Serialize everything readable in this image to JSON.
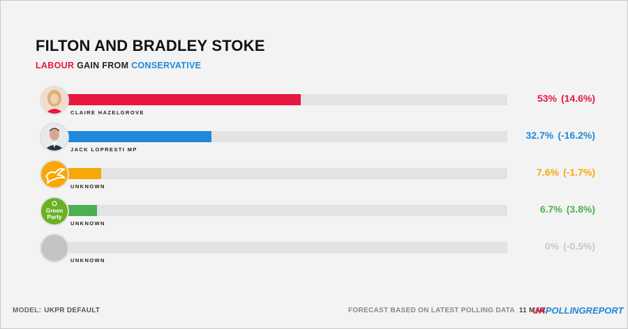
{
  "title": "FILTON AND BRADLEY STOKE",
  "subtitle": {
    "gaining_party": "LABOUR",
    "middle": "GAIN FROM",
    "losing_party": "CONSERVATIVE"
  },
  "colors": {
    "labour": "#e8173f",
    "conservative": "#1f88d8",
    "libdem": "#f7a70a",
    "green": "#4caf50",
    "other": "#c4c4c4",
    "track": "#e3e3e3"
  },
  "chart_data": {
    "type": "bar",
    "orientation": "horizontal",
    "xlim": [
      0,
      100
    ],
    "grid": false,
    "categories": [
      "CLAIRE HAZELGROVE",
      "JACK LOPRESTI MP",
      "UNKNOWN",
      "UNKNOWN",
      "UNKNOWN"
    ],
    "values": [
      53,
      32.7,
      7.6,
      6.7,
      0
    ],
    "value_labels": [
      "53%",
      "32.7%",
      "7.6%",
      "6.7%",
      "0%"
    ],
    "change_labels": [
      "(14.6%)",
      "(-16.2%)",
      "(-1.7%)",
      "(3.8%)",
      "(-0.5%)"
    ],
    "changes": [
      14.6,
      -16.2,
      -1.7,
      3.8,
      -0.5
    ],
    "colors": [
      "#e8173f",
      "#1f88d8",
      "#f7a70a",
      "#4caf50",
      "#c4c4c4"
    ],
    "label_colors": [
      "#e8173f",
      "#1f88d8",
      "#f7a70a",
      "#4caf50",
      "#c8c8c8"
    ],
    "avatars": [
      "candidate-photo-icon",
      "candidate-photo-icon",
      "libdem-bird-icon",
      "green-party-logo-icon",
      "blank-avatar-icon"
    ]
  },
  "green_logo_text": [
    "Green",
    "Party"
  ],
  "footer": {
    "model_label": "MODEL:",
    "model_value": "UKPR DEFAULT",
    "forecast_note": "FORECAST BASED ON LATEST POLLING DATA",
    "date": "11 MAR",
    "logo_uk": "UK",
    "logo_rest": "POLLINGREPORT"
  }
}
